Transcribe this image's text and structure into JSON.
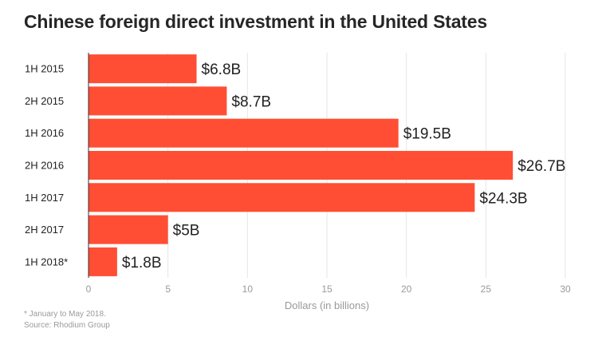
{
  "title": "Chinese foreign direct investment in the United States",
  "footnote": "* January to May 2018.",
  "source": "Source: Rhodium Group",
  "colors": {
    "bar": "#ff4e33",
    "grid": "#e6e6e6",
    "axis": "#333333",
    "tick": "#999999",
    "label": "#222222"
  },
  "chart_data": {
    "type": "bar",
    "orientation": "horizontal",
    "categories": [
      "1H 2015",
      "2H 2015",
      "1H 2016",
      "2H 2016",
      "1H 2017",
      "2H 2017",
      "1H 2018*"
    ],
    "values": [
      6.8,
      8.7,
      19.5,
      26.7,
      24.3,
      5,
      1.8
    ],
    "data_labels": [
      "$6.8B",
      "$8.7B",
      "$19.5B",
      "$26.7B",
      "$24.3B",
      "$5B",
      "$1.8B"
    ],
    "xlabel": "Dollars (in billions)",
    "xlim": [
      0,
      30
    ],
    "xticks": [
      0,
      5,
      10,
      15,
      20,
      25,
      30
    ],
    "grid": true
  }
}
